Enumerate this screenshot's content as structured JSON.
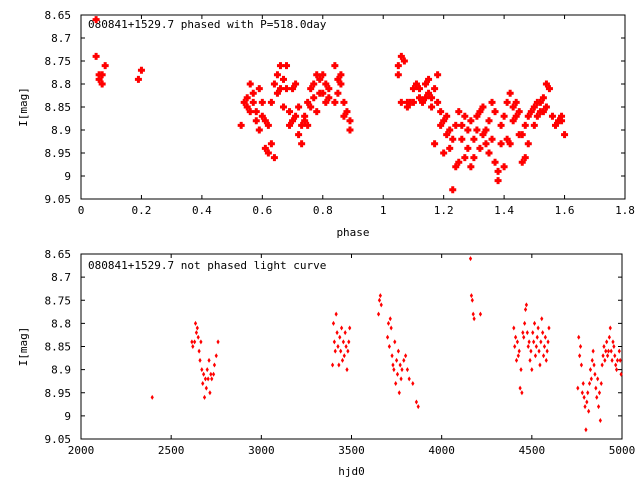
{
  "chart_data": [
    {
      "type": "scatter",
      "title": "080841+1529.7 phased with P=518.0day",
      "xlabel": "phase",
      "ylabel": "I[mag]",
      "xlim": [
        0,
        1.8
      ],
      "ylim": [
        8.65,
        9.05
      ],
      "y_inverted": true,
      "grid": false,
      "marker_color": "#ff0000",
      "marker": "filled-cross",
      "xticks": [
        "0",
        "0.2",
        "0.4",
        "0.6",
        "0.8",
        "1",
        "1.2",
        "1.4",
        "1.6",
        "1.8"
      ],
      "yticks": [
        "8.65",
        "8.7",
        "8.75",
        "8.8",
        "8.85",
        "8.9",
        "8.95",
        "9",
        "9.05"
      ],
      "points": [
        [
          0.05,
          8.66
        ],
        [
          0.05,
          8.74
        ],
        [
          0.06,
          8.78
        ],
        [
          0.06,
          8.79
        ],
        [
          0.07,
          8.8
        ],
        [
          0.07,
          8.78
        ],
        [
          0.08,
          8.76
        ],
        [
          0.19,
          8.79
        ],
        [
          0.2,
          8.77
        ],
        [
          0.53,
          8.89
        ],
        [
          0.54,
          8.84
        ],
        [
          0.55,
          8.85
        ],
        [
          0.55,
          8.83
        ],
        [
          0.56,
          8.86
        ],
        [
          0.56,
          8.8
        ],
        [
          0.57,
          8.82
        ],
        [
          0.57,
          8.84
        ],
        [
          0.58,
          8.86
        ],
        [
          0.58,
          8.88
        ],
        [
          0.59,
          8.81
        ],
        [
          0.59,
          8.9
        ],
        [
          0.6,
          8.84
        ],
        [
          0.6,
          8.87
        ],
        [
          0.61,
          8.94
        ],
        [
          0.61,
          8.88
        ],
        [
          0.62,
          8.95
        ],
        [
          0.62,
          8.89
        ],
        [
          0.63,
          8.84
        ],
        [
          0.63,
          8.93
        ],
        [
          0.64,
          8.96
        ],
        [
          0.64,
          8.8
        ],
        [
          0.65,
          8.78
        ],
        [
          0.65,
          8.82
        ],
        [
          0.66,
          8.76
        ],
        [
          0.66,
          8.81
        ],
        [
          0.67,
          8.79
        ],
        [
          0.67,
          8.85
        ],
        [
          0.68,
          8.76
        ],
        [
          0.68,
          8.81
        ],
        [
          0.69,
          8.89
        ],
        [
          0.69,
          8.86
        ],
        [
          0.7,
          8.88
        ],
        [
          0.7,
          8.81
        ],
        [
          0.71,
          8.87
        ],
        [
          0.71,
          8.8
        ],
        [
          0.72,
          8.91
        ],
        [
          0.72,
          8.85
        ],
        [
          0.73,
          8.89
        ],
        [
          0.73,
          8.93
        ],
        [
          0.74,
          8.88
        ],
        [
          0.74,
          8.87
        ],
        [
          0.75,
          8.84
        ],
        [
          0.75,
          8.89
        ],
        [
          0.76,
          8.81
        ],
        [
          0.76,
          8.85
        ],
        [
          0.77,
          8.83
        ],
        [
          0.77,
          8.8
        ],
        [
          0.78,
          8.78
        ],
        [
          0.78,
          8.86
        ],
        [
          0.79,
          8.82
        ],
        [
          0.79,
          8.79
        ],
        [
          0.8,
          8.82
        ],
        [
          0.8,
          8.78
        ],
        [
          0.81,
          8.84
        ],
        [
          0.81,
          8.8
        ],
        [
          0.82,
          8.81
        ],
        [
          0.82,
          8.83
        ],
        [
          0.84,
          8.76
        ],
        [
          0.84,
          8.84
        ],
        [
          0.85,
          8.82
        ],
        [
          0.85,
          8.79
        ],
        [
          0.86,
          8.78
        ],
        [
          0.86,
          8.8
        ],
        [
          0.87,
          8.87
        ],
        [
          0.87,
          8.84
        ],
        [
          0.88,
          8.86
        ],
        [
          0.89,
          8.88
        ],
        [
          0.89,
          8.9
        ],
        [
          1.05,
          8.78
        ],
        [
          1.05,
          8.76
        ],
        [
          1.06,
          8.84
        ],
        [
          1.06,
          8.74
        ],
        [
          1.07,
          8.75
        ],
        [
          1.08,
          8.84
        ],
        [
          1.08,
          8.85
        ],
        [
          1.09,
          8.84
        ],
        [
          1.1,
          8.81
        ],
        [
          1.1,
          8.84
        ],
        [
          1.11,
          8.8
        ],
        [
          1.12,
          8.81
        ],
        [
          1.12,
          8.83
        ],
        [
          1.13,
          8.84
        ],
        [
          1.14,
          8.8
        ],
        [
          1.14,
          8.83
        ],
        [
          1.15,
          8.82
        ],
        [
          1.15,
          8.79
        ],
        [
          1.16,
          8.85
        ],
        [
          1.16,
          8.83
        ],
        [
          1.17,
          8.81
        ],
        [
          1.17,
          8.93
        ],
        [
          1.18,
          8.84
        ],
        [
          1.18,
          8.78
        ],
        [
          1.19,
          8.86
        ],
        [
          1.19,
          8.89
        ],
        [
          1.2,
          8.88
        ],
        [
          1.2,
          8.95
        ],
        [
          1.21,
          8.87
        ],
        [
          1.21,
          8.91
        ],
        [
          1.22,
          8.9
        ],
        [
          1.22,
          8.94
        ],
        [
          1.23,
          8.92
        ],
        [
          1.23,
          9.03
        ],
        [
          1.24,
          8.89
        ],
        [
          1.24,
          8.98
        ],
        [
          1.25,
          8.86
        ],
        [
          1.25,
          8.97
        ],
        [
          1.26,
          8.89
        ],
        [
          1.26,
          8.92
        ],
        [
          1.27,
          8.96
        ],
        [
          1.27,
          8.87
        ],
        [
          1.28,
          8.94
        ],
        [
          1.28,
          8.9
        ],
        [
          1.29,
          8.98
        ],
        [
          1.29,
          8.88
        ],
        [
          1.3,
          8.92
        ],
        [
          1.3,
          8.96
        ],
        [
          1.31,
          8.87
        ],
        [
          1.31,
          8.9
        ],
        [
          1.32,
          8.94
        ],
        [
          1.32,
          8.86
        ],
        [
          1.33,
          8.91
        ],
        [
          1.33,
          8.85
        ],
        [
          1.34,
          8.93
        ],
        [
          1.34,
          8.9
        ],
        [
          1.35,
          8.88
        ],
        [
          1.35,
          8.95
        ],
        [
          1.36,
          8.84
        ],
        [
          1.36,
          8.92
        ],
        [
          1.37,
          8.97
        ],
        [
          1.37,
          8.86
        ],
        [
          1.38,
          8.99
        ],
        [
          1.38,
          9.01
        ],
        [
          1.39,
          8.93
        ],
        [
          1.39,
          8.89
        ],
        [
          1.4,
          8.98
        ],
        [
          1.4,
          8.87
        ],
        [
          1.41,
          8.84
        ],
        [
          1.41,
          8.92
        ],
        [
          1.42,
          8.82
        ],
        [
          1.42,
          8.93
        ],
        [
          1.43,
          8.85
        ],
        [
          1.43,
          8.88
        ],
        [
          1.44,
          8.84
        ],
        [
          1.44,
          8.87
        ],
        [
          1.45,
          8.86
        ],
        [
          1.45,
          8.91
        ],
        [
          1.46,
          8.97
        ],
        [
          1.46,
          8.91
        ],
        [
          1.47,
          8.96
        ],
        [
          1.47,
          8.89
        ],
        [
          1.48,
          8.93
        ],
        [
          1.48,
          8.87
        ],
        [
          1.49,
          8.86
        ],
        [
          1.5,
          8.85
        ],
        [
          1.5,
          8.89
        ],
        [
          1.51,
          8.84
        ],
        [
          1.51,
          8.87
        ],
        [
          1.52,
          8.86
        ],
        [
          1.52,
          8.84
        ],
        [
          1.53,
          8.86
        ],
        [
          1.53,
          8.83
        ],
        [
          1.54,
          8.85
        ],
        [
          1.54,
          8.8
        ],
        [
          1.55,
          8.81
        ],
        [
          1.56,
          8.87
        ],
        [
          1.57,
          8.89
        ],
        [
          1.58,
          8.88
        ],
        [
          1.59,
          8.87
        ],
        [
          1.59,
          8.88
        ],
        [
          1.6,
          8.91
        ]
      ]
    },
    {
      "type": "scatter",
      "title": "080841+1529.7 not phased light curve",
      "xlabel": "hjd0",
      "ylabel": "I[mag]",
      "xlim": [
        2000,
        5000
      ],
      "ylim": [
        8.65,
        9.05
      ],
      "y_inverted": true,
      "grid": false,
      "marker_color": "#ff0000",
      "marker": "diamond",
      "xticks": [
        "2000",
        "2500",
        "3000",
        "3500",
        "4000",
        "4500",
        "5000"
      ],
      "yticks": [
        "8.65",
        "8.7",
        "8.75",
        "8.8",
        "8.85",
        "8.9",
        "8.95",
        "9",
        "9.05"
      ],
      "points": [
        [
          2395,
          8.96
        ],
        [
          2615,
          8.84
        ],
        [
          2620,
          8.85
        ],
        [
          2630,
          8.84
        ],
        [
          2635,
          8.8
        ],
        [
          2640,
          8.82
        ],
        [
          2645,
          8.81
        ],
        [
          2650,
          8.83
        ],
        [
          2655,
          8.86
        ],
        [
          2660,
          8.88
        ],
        [
          2665,
          8.84
        ],
        [
          2670,
          8.9
        ],
        [
          2675,
          8.93
        ],
        [
          2680,
          8.91
        ],
        [
          2685,
          8.96
        ],
        [
          2690,
          8.92
        ],
        [
          2695,
          8.94
        ],
        [
          2700,
          8.9
        ],
        [
          2705,
          8.92
        ],
        [
          2710,
          8.88
        ],
        [
          2715,
          8.95
        ],
        [
          2720,
          8.91
        ],
        [
          2725,
          8.92
        ],
        [
          2735,
          8.91
        ],
        [
          2740,
          8.89
        ],
        [
          2750,
          8.87
        ],
        [
          2760,
          8.84
        ],
        [
          3395,
          8.89
        ],
        [
          3400,
          8.8
        ],
        [
          3405,
          8.84
        ],
        [
          3410,
          8.86
        ],
        [
          3415,
          8.78
        ],
        [
          3420,
          8.82
        ],
        [
          3425,
          8.85
        ],
        [
          3430,
          8.89
        ],
        [
          3435,
          8.83
        ],
        [
          3440,
          8.86
        ],
        [
          3445,
          8.81
        ],
        [
          3450,
          8.88
        ],
        [
          3455,
          8.84
        ],
        [
          3460,
          8.87
        ],
        [
          3465,
          8.82
        ],
        [
          3470,
          8.85
        ],
        [
          3475,
          8.9
        ],
        [
          3480,
          8.86
        ],
        [
          3485,
          8.84
        ],
        [
          3490,
          8.81
        ],
        [
          3650,
          8.78
        ],
        [
          3655,
          8.75
        ],
        [
          3660,
          8.74
        ],
        [
          3665,
          8.76
        ],
        [
          3700,
          8.83
        ],
        [
          3705,
          8.8
        ],
        [
          3710,
          8.85
        ],
        [
          3715,
          8.79
        ],
        [
          3720,
          8.81
        ],
        [
          3725,
          8.87
        ],
        [
          3730,
          8.89
        ],
        [
          3735,
          8.9
        ],
        [
          3740,
          8.84
        ],
        [
          3745,
          8.93
        ],
        [
          3750,
          8.88
        ],
        [
          3755,
          8.91
        ],
        [
          3760,
          8.86
        ],
        [
          3765,
          8.95
        ],
        [
          3770,
          8.89
        ],
        [
          3775,
          8.92
        ],
        [
          3780,
          8.9
        ],
        [
          3790,
          8.88
        ],
        [
          3800,
          8.87
        ],
        [
          3810,
          8.9
        ],
        [
          3820,
          8.92
        ],
        [
          3840,
          8.93
        ],
        [
          3860,
          8.97
        ],
        [
          3870,
          8.98
        ],
        [
          4160,
          8.66
        ],
        [
          4165,
          8.74
        ],
        [
          4170,
          8.75
        ],
        [
          4175,
          8.78
        ],
        [
          4180,
          8.79
        ],
        [
          4215,
          8.78
        ],
        [
          4400,
          8.81
        ],
        [
          4405,
          8.85
        ],
        [
          4410,
          8.83
        ],
        [
          4415,
          8.88
        ],
        [
          4420,
          8.84
        ],
        [
          4425,
          8.87
        ],
        [
          4430,
          8.86
        ],
        [
          4435,
          8.94
        ],
        [
          4440,
          8.9
        ],
        [
          4445,
          8.95
        ],
        [
          4450,
          8.82
        ],
        [
          4455,
          8.83
        ],
        [
          4460,
          8.8
        ],
        [
          4465,
          8.77
        ],
        [
          4470,
          8.76
        ],
        [
          4475,
          8.82
        ],
        [
          4480,
          8.85
        ],
        [
          4485,
          8.84
        ],
        [
          4490,
          8.88
        ],
        [
          4495,
          8.86
        ],
        [
          4500,
          8.9
        ],
        [
          4505,
          8.82
        ],
        [
          4510,
          8.84
        ],
        [
          4515,
          8.8
        ],
        [
          4520,
          8.87
        ],
        [
          4525,
          8.85
        ],
        [
          4530,
          8.83
        ],
        [
          4535,
          8.81
        ],
        [
          4540,
          8.86
        ],
        [
          4545,
          8.89
        ],
        [
          4550,
          8.84
        ],
        [
          4555,
          8.79
        ],
        [
          4560,
          8.82
        ],
        [
          4565,
          8.87
        ],
        [
          4570,
          8.85
        ],
        [
          4575,
          8.83
        ],
        [
          4580,
          8.88
        ],
        [
          4585,
          8.86
        ],
        [
          4590,
          8.84
        ],
        [
          4595,
          8.81
        ],
        [
          4755,
          8.94
        ],
        [
          4760,
          8.83
        ],
        [
          4765,
          8.87
        ],
        [
          4770,
          8.85
        ],
        [
          4775,
          8.89
        ],
        [
          4780,
          8.95
        ],
        [
          4785,
          8.93
        ],
        [
          4790,
          8.96
        ],
        [
          4795,
          8.98
        ],
        [
          4800,
          9.03
        ],
        [
          4805,
          8.97
        ],
        [
          4810,
          8.95
        ],
        [
          4815,
          8.99
        ],
        [
          4820,
          8.93
        ],
        [
          4825,
          8.9
        ],
        [
          4830,
          8.92
        ],
        [
          4835,
          8.88
        ],
        [
          4840,
          8.86
        ],
        [
          4845,
          8.89
        ],
        [
          4850,
          8.91
        ],
        [
          4855,
          8.94
        ],
        [
          4860,
          8.96
        ],
        [
          4865,
          8.92
        ],
        [
          4870,
          8.98
        ],
        [
          4875,
          8.95
        ],
        [
          4880,
          9.01
        ],
        [
          4885,
          8.93
        ],
        [
          4890,
          8.89
        ],
        [
          4895,
          8.87
        ],
        [
          4900,
          8.85
        ],
        [
          4905,
          8.88
        ],
        [
          4910,
          8.86
        ],
        [
          4915,
          8.84
        ],
        [
          4920,
          8.87
        ],
        [
          4925,
          8.86
        ],
        [
          4930,
          8.83
        ],
        [
          4935,
          8.81
        ],
        [
          4940,
          8.86
        ],
        [
          4945,
          8.88
        ],
        [
          4950,
          8.84
        ],
        [
          4955,
          8.85
        ],
        [
          4960,
          8.87
        ],
        [
          4965,
          8.89
        ],
        [
          4970,
          8.9
        ],
        [
          4975,
          8.88
        ],
        [
          4985,
          8.86
        ],
        [
          4990,
          8.88
        ],
        [
          4995,
          8.91
        ]
      ]
    }
  ]
}
